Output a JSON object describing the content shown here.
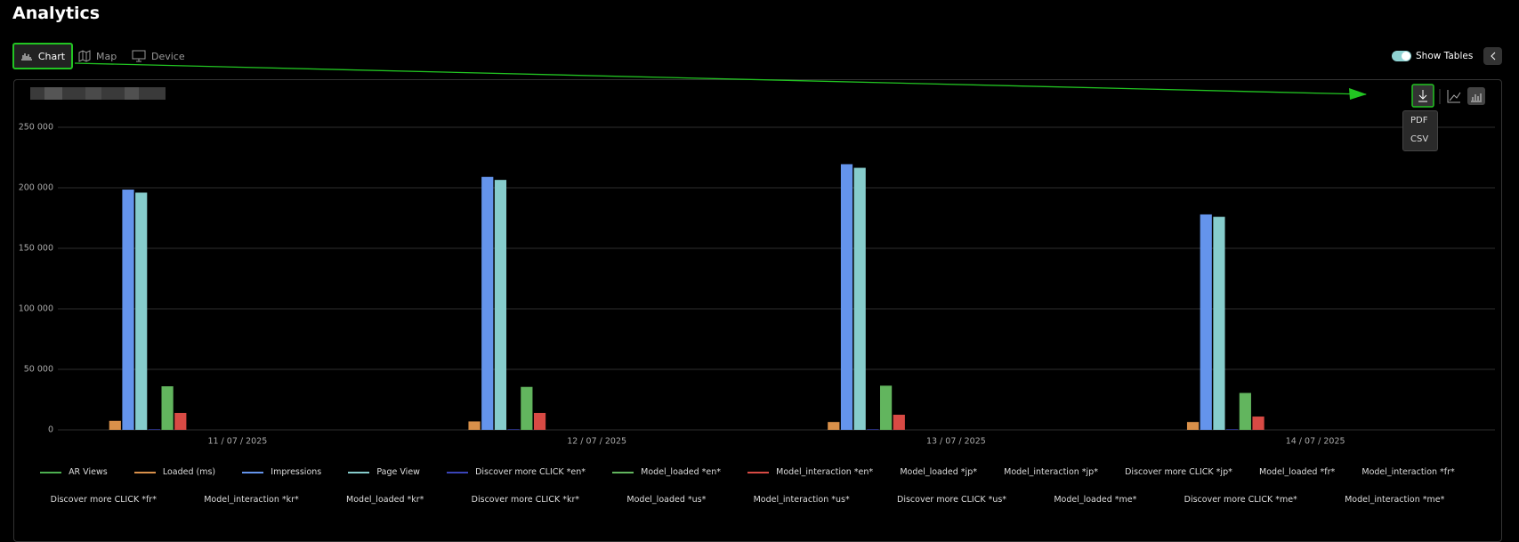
{
  "header": {
    "title": "Analytics"
  },
  "tabs": [
    "Chart",
    "Map",
    "Device"
  ],
  "toggle_label": "Show Tables",
  "export_menu": [
    "PDF",
    "CSV"
  ],
  "chart_data": {
    "type": "bar",
    "categories": [
      "11 / 07 / 2025",
      "12 / 07 / 2025",
      "13 / 07 / 2025",
      "14 / 07 / 2025"
    ],
    "ylim": [
      0,
      250000
    ],
    "yticks": [
      0,
      {
        "value": 50000,
        "label": "50 000"
      },
      {
        "value": 100000,
        "label": "100 000"
      },
      {
        "value": 150000,
        "label": "150 000"
      },
      {
        "value": 200000,
        "label": "200 000"
      },
      {
        "value": 250000,
        "label": "250 000"
      }
    ],
    "grid": true,
    "series": [
      {
        "name": "AR Views",
        "color": "#4caf50",
        "values": [
          0,
          0,
          0,
          0
        ]
      },
      {
        "name": "Loaded (ms)",
        "color": "#d9904a",
        "values": [
          7500,
          7000,
          6500,
          6500
        ]
      },
      {
        "name": "Impressions",
        "color": "#6494ec",
        "values": [
          198500,
          209000,
          219500,
          178000
        ]
      },
      {
        "name": "Page View",
        "color": "#86cccc",
        "values": [
          196000,
          206500,
          216500,
          176000
        ]
      },
      {
        "name": "Discover more CLICK *en*",
        "color": "#3a44b8",
        "values": [
          500,
          500,
          500,
          500
        ]
      },
      {
        "name": "Model_loaded *en*",
        "color": "#62b55e",
        "values": [
          36000,
          35500,
          36500,
          30500
        ]
      },
      {
        "name": "Model_interaction *en*",
        "color": "#d84a44",
        "values": [
          14000,
          14000,
          12500,
          11000
        ]
      },
      {
        "name": "Model_loaded *jp*",
        "values": [
          null,
          null,
          null,
          null
        ]
      },
      {
        "name": "Model_interaction *jp*",
        "values": [
          null,
          null,
          null,
          null
        ]
      },
      {
        "name": "Discover more CLICK *jp*",
        "values": [
          null,
          null,
          null,
          null
        ]
      },
      {
        "name": "Model_loaded *fr*",
        "values": [
          null,
          null,
          null,
          null
        ]
      },
      {
        "name": "Model_interaction *fr*",
        "values": [
          null,
          null,
          null,
          null
        ]
      },
      {
        "name": "Discover more CLICK *fr*",
        "values": [
          null,
          null,
          null,
          null
        ]
      },
      {
        "name": "Model_interaction *kr*",
        "values": [
          null,
          null,
          null,
          null
        ]
      },
      {
        "name": "Model_loaded *kr*",
        "values": [
          null,
          null,
          null,
          null
        ]
      },
      {
        "name": "Discover more CLICK *kr*",
        "values": [
          null,
          null,
          null,
          null
        ]
      },
      {
        "name": "Model_loaded *us*",
        "values": [
          null,
          null,
          null,
          null
        ]
      },
      {
        "name": "Model_interaction *us*",
        "values": [
          null,
          null,
          null,
          null
        ]
      },
      {
        "name": "Discover more CLICK *us*",
        "values": [
          null,
          null,
          null,
          null
        ]
      },
      {
        "name": "Model_loaded *me*",
        "values": [
          null,
          null,
          null,
          null
        ]
      },
      {
        "name": "Discover more CLICK *me*",
        "values": [
          null,
          null,
          null,
          null
        ]
      },
      {
        "name": "Model_interaction *me*",
        "values": [
          null,
          null,
          null,
          null
        ]
      }
    ]
  }
}
